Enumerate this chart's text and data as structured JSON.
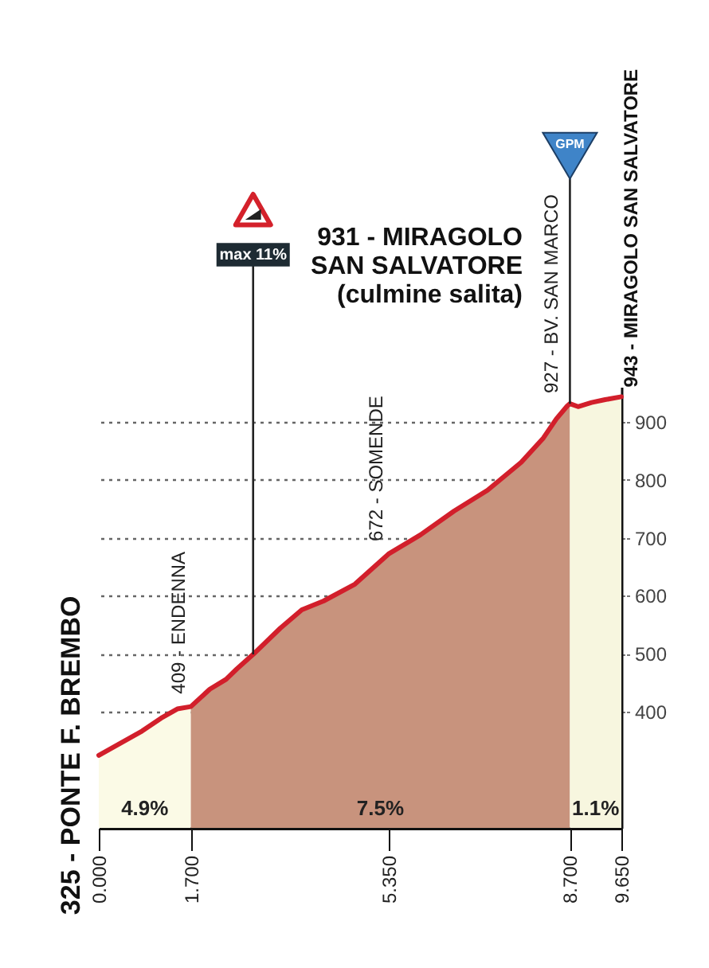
{
  "chart_data": {
    "type": "area",
    "series": [
      {
        "color": "#fbfae6",
        "x": [
          0,
          0.4,
          0.8,
          1.15,
          1.45,
          1.7
        ],
        "values": [
          325,
          346,
          367,
          389,
          405,
          409
        ]
      },
      {
        "color": "#c8937d",
        "x": [
          1.7,
          2.05,
          2.35,
          2.55,
          2.85,
          3.35,
          3.75,
          4.15,
          4.73,
          5.35,
          5.94,
          6.56,
          7.18,
          7.8,
          8.21,
          8.45,
          8.65,
          8.7
        ],
        "values": [
          409,
          439,
          456,
          474,
          499,
          544,
          576,
          591,
          620,
          672,
          705,
          746,
          782,
          830,
          872,
          905,
          927,
          931
        ]
      },
      {
        "color": "#f7f6df",
        "x": [
          8.7,
          8.85,
          9.1,
          9.35,
          9.65
        ],
        "values": [
          931,
          926,
          933,
          938,
          943
        ]
      },
      {
        "type": "line",
        "color": "#d21f2b",
        "x": [
          0,
          0.4,
          0.8,
          1.15,
          1.45,
          1.7,
          2.05,
          2.35,
          2.55,
          2.85,
          3.35,
          3.75,
          4.15,
          4.73,
          5.35,
          5.94,
          6.56,
          7.18,
          7.8,
          8.21,
          8.45,
          8.65,
          8.7,
          8.85,
          9.1,
          9.35,
          9.65
        ],
        "values": [
          325,
          346,
          367,
          389,
          405,
          409,
          439,
          456,
          474,
          499,
          544,
          576,
          591,
          620,
          672,
          705,
          746,
          782,
          830,
          872,
          905,
          927,
          931,
          926,
          933,
          938,
          943
        ]
      }
    ],
    "xlim": [
      0,
      9.65
    ],
    "ylim": [
      200,
      960
    ],
    "xticks": [
      {
        "value": 0,
        "label": "0.000"
      },
      {
        "value": 1.7,
        "label": "1.700"
      },
      {
        "value": 5.35,
        "label": "5.350"
      },
      {
        "value": 8.7,
        "label": "8.700"
      },
      {
        "value": 9.65,
        "label": "9.650"
      }
    ],
    "yticks": [
      400,
      500,
      600,
      700,
      800,
      900
    ],
    "grid": "y",
    "annotations": [
      {
        "text": "325 - PONTE F. BREMBO",
        "x": 0,
        "y": 325
      },
      {
        "text": "409 - ENDENNA",
        "x": 1.7,
        "y": 409
      },
      {
        "text": "672 - SOMENDE",
        "x": 5.35,
        "y": 672
      },
      {
        "text": "927 - BV. SAN MARCO",
        "x": 8.65,
        "y": 927
      },
      "931 - MIRAGOLO\nSAN SALVATORE\n(culmine salita)",
      {
        "text": "GPM",
        "x": 8.7,
        "y": 931
      },
      {
        "text": "943 - MIRAGOLO SAN SALVATORE",
        "x": 9.65,
        "y": 943
      },
      {
        "text": "max 11%",
        "x": 2.85,
        "y": 499
      },
      "4.9%",
      "7.5%",
      "1.1%"
    ]
  }
}
